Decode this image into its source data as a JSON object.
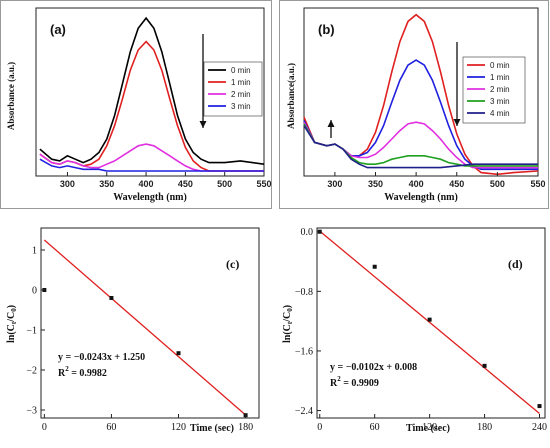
{
  "chart_data": [
    {
      "type": "line",
      "panel_label": "(a)",
      "xlabel": "Wavelength (nm)",
      "ylabel": "Absorbance (a.u.)",
      "xlim": [
        260,
        550
      ],
      "x_ticks": [
        "300",
        "350",
        "400",
        "450",
        "500",
        "550"
      ],
      "arrow": "down",
      "legend_position": "right",
      "series": [
        {
          "name": "0 min",
          "color": "#000000",
          "x": [
            265,
            280,
            290,
            300,
            310,
            320,
            330,
            340,
            350,
            360,
            370,
            380,
            390,
            400,
            410,
            420,
            430,
            440,
            450,
            460,
            470,
            480,
            500,
            520,
            550
          ],
          "y": [
            0.16,
            0.1,
            0.09,
            0.12,
            0.1,
            0.08,
            0.1,
            0.14,
            0.22,
            0.36,
            0.55,
            0.74,
            0.88,
            0.94,
            0.88,
            0.74,
            0.55,
            0.36,
            0.22,
            0.14,
            0.1,
            0.08,
            0.08,
            0.09,
            0.07
          ]
        },
        {
          "name": "1 min",
          "color": "#e02020",
          "x": [
            265,
            280,
            290,
            300,
            310,
            320,
            330,
            340,
            350,
            360,
            370,
            380,
            390,
            400,
            410,
            420,
            430,
            440,
            450,
            460,
            470,
            480,
            500,
            520,
            550
          ],
          "y": [
            0.13,
            0.08,
            0.07,
            0.09,
            0.08,
            0.06,
            0.07,
            0.1,
            0.18,
            0.3,
            0.46,
            0.63,
            0.75,
            0.8,
            0.75,
            0.63,
            0.46,
            0.3,
            0.17,
            0.09,
            0.05,
            0.03,
            0.03,
            0.03,
            0.03
          ]
        },
        {
          "name": "2 min",
          "color": "#e030e0",
          "x": [
            265,
            280,
            290,
            300,
            310,
            320,
            330,
            340,
            350,
            360,
            370,
            380,
            390,
            400,
            410,
            420,
            430,
            440,
            450,
            460,
            470,
            480,
            500,
            520,
            550
          ],
          "y": [
            0.13,
            0.08,
            0.07,
            0.09,
            0.08,
            0.06,
            0.05,
            0.05,
            0.07,
            0.09,
            0.12,
            0.15,
            0.18,
            0.19,
            0.18,
            0.15,
            0.12,
            0.09,
            0.06,
            0.04,
            0.03,
            0.03,
            0.03,
            0.03,
            0.03
          ]
        },
        {
          "name": "3 min",
          "color": "#2020e0",
          "x": [
            265,
            280,
            290,
            300,
            310,
            320,
            330,
            340,
            350,
            360,
            380,
            400,
            420,
            450,
            500,
            550
          ],
          "y": [
            0.1,
            0.06,
            0.05,
            0.06,
            0.05,
            0.04,
            0.04,
            0.04,
            0.03,
            0.03,
            0.03,
            0.03,
            0.03,
            0.03,
            0.03,
            0.03
          ]
        }
      ]
    },
    {
      "type": "line",
      "panel_label": "(b)",
      "xlabel": "Wavelength (nm)",
      "ylabel": "Absorbance(a.u.)",
      "xlim": [
        262,
        550
      ],
      "x_ticks": [
        "300",
        "350",
        "400",
        "450",
        "500",
        "550"
      ],
      "arrow": "up-and-down",
      "legend_position": "right",
      "series": [
        {
          "name": "0 min",
          "color": "#e02020",
          "x": [
            262,
            275,
            290,
            300,
            310,
            320,
            330,
            340,
            350,
            360,
            370,
            380,
            390,
            400,
            410,
            420,
            430,
            440,
            450,
            460,
            470,
            480,
            500,
            520,
            550
          ],
          "y": [
            0.35,
            0.2,
            0.18,
            0.19,
            0.16,
            0.12,
            0.12,
            0.16,
            0.26,
            0.42,
            0.62,
            0.8,
            0.92,
            0.96,
            0.92,
            0.8,
            0.62,
            0.42,
            0.25,
            0.13,
            0.06,
            0.02,
            0.01,
            0.02,
            0.03
          ]
        },
        {
          "name": "1 min",
          "color": "#2020e0",
          "x": [
            262,
            275,
            290,
            300,
            310,
            320,
            330,
            340,
            350,
            360,
            370,
            380,
            390,
            400,
            410,
            420,
            430,
            440,
            450,
            460,
            470,
            480,
            500,
            520,
            550
          ],
          "y": [
            0.33,
            0.2,
            0.18,
            0.19,
            0.16,
            0.12,
            0.12,
            0.14,
            0.2,
            0.3,
            0.44,
            0.57,
            0.66,
            0.69,
            0.66,
            0.57,
            0.44,
            0.3,
            0.18,
            0.1,
            0.06,
            0.04,
            0.04,
            0.04,
            0.04
          ]
        },
        {
          "name": "2 min",
          "color": "#e030e0",
          "x": [
            262,
            275,
            290,
            300,
            310,
            320,
            330,
            340,
            350,
            360,
            370,
            380,
            390,
            400,
            410,
            420,
            430,
            440,
            450,
            460,
            470,
            480,
            500,
            520,
            550
          ],
          "y": [
            0.32,
            0.2,
            0.18,
            0.19,
            0.16,
            0.12,
            0.11,
            0.11,
            0.13,
            0.17,
            0.22,
            0.27,
            0.31,
            0.32,
            0.31,
            0.27,
            0.22,
            0.16,
            0.11,
            0.07,
            0.05,
            0.05,
            0.05,
            0.05,
            0.05
          ]
        },
        {
          "name": "3 min",
          "color": "#20a020",
          "x": [
            262,
            275,
            290,
            300,
            310,
            320,
            330,
            340,
            350,
            360,
            370,
            380,
            390,
            400,
            410,
            420,
            430,
            440,
            450,
            460,
            470,
            480,
            500,
            520,
            550
          ],
          "y": [
            0.31,
            0.2,
            0.18,
            0.19,
            0.16,
            0.11,
            0.08,
            0.07,
            0.07,
            0.08,
            0.1,
            0.11,
            0.12,
            0.12,
            0.12,
            0.11,
            0.1,
            0.08,
            0.07,
            0.06,
            0.06,
            0.06,
            0.06,
            0.06,
            0.06
          ]
        },
        {
          "name": "4 min",
          "color": "#20208a",
          "x": [
            262,
            275,
            290,
            300,
            310,
            320,
            330,
            340,
            350,
            370,
            400,
            430,
            450,
            470,
            500,
            520,
            550
          ],
          "y": [
            0.3,
            0.2,
            0.18,
            0.19,
            0.16,
            0.1,
            0.07,
            0.05,
            0.05,
            0.05,
            0.05,
            0.05,
            0.06,
            0.07,
            0.07,
            0.07,
            0.07
          ]
        }
      ]
    },
    {
      "type": "scatter",
      "panel_label": "(c)",
      "xlabel": "Time (sec)",
      "ylabel": "ln(C",
      "ylabel_sub1": "t",
      "ylabel_mid": "/C",
      "ylabel_sub2": "0",
      "ylabel_end": ")",
      "xlim": [
        -3,
        192
      ],
      "ylim": [
        -3.2,
        1.55
      ],
      "x_ticks": [
        0,
        60,
        120,
        180
      ],
      "y_ticks": [
        1,
        0,
        -1,
        -2,
        -3
      ],
      "y_tick_labels": [
        "1",
        "0",
        "−1",
        "−2",
        "−3"
      ],
      "points": {
        "x": [
          0,
          60,
          120,
          180
        ],
        "y": [
          0,
          -0.2,
          -1.58,
          -3.13
        ]
      },
      "fit": {
        "x": [
          0,
          180
        ],
        "y": [
          1.25,
          -3.124
        ]
      },
      "equation": "y = −0.0243x + 1.250",
      "r2_label": "R",
      "r2_sup": "2",
      "r2_value": " = 0.9982"
    },
    {
      "type": "scatter",
      "panel_label": "(d)",
      "xlabel": "Time (sec)",
      "ylabel": "ln(C",
      "ylabel_sub1": "t",
      "ylabel_mid": "/C",
      "ylabel_sub2": "0",
      "ylabel_end": ")",
      "xlim": [
        -3,
        246
      ],
      "ylim": [
        -2.5,
        0.05
      ],
      "x_ticks": [
        0,
        60,
        120,
        180,
        240
      ],
      "y_ticks": [
        0,
        -0.8,
        -1.6,
        -2.4
      ],
      "y_tick_labels": [
        "0.0",
        "−0.8",
        "−1.6",
        "−2.4"
      ],
      "points": {
        "x": [
          0,
          60,
          120,
          180,
          240
        ],
        "y": [
          0,
          -0.47,
          -1.18,
          -1.8,
          -2.34
        ]
      },
      "fit": {
        "x": [
          0,
          240
        ],
        "y": [
          0.008,
          -2.44
        ]
      },
      "equation": "y = −0.0102x + 0.008",
      "r2_label": "R",
      "r2_sup": "2",
      "r2_value": " = 0.9909"
    }
  ]
}
